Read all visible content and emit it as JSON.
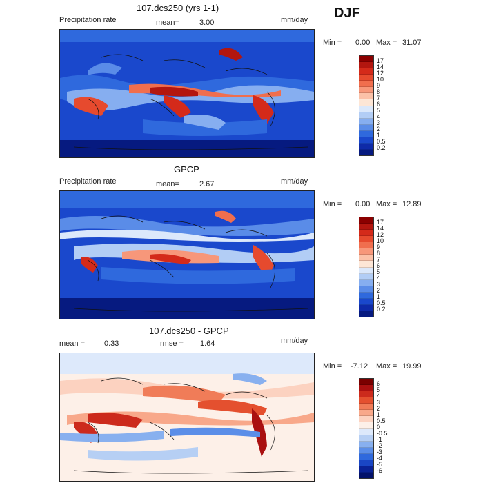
{
  "season": "DJF",
  "panels": [
    {
      "title": "107.dcs250 (yrs 1-1)",
      "left_label": "Precipitation rate",
      "mean_label": "mean=",
      "mean_value": "3.00",
      "units": "mm/day",
      "min_label": "Min =",
      "min_value": "0.00",
      "max_label": "Max =",
      "max_value": "31.07",
      "colorbar_labels": [
        "17",
        "14",
        "12",
        "10",
        "9",
        "8",
        "7",
        "6",
        "5",
        "4",
        "3",
        "2",
        "1",
        "0.5",
        "0.2"
      ]
    },
    {
      "title": "GPCP",
      "left_label": "Precipitation rate",
      "mean_label": "mean=",
      "mean_value": "2.67",
      "units": "mm/day",
      "min_label": "Min =",
      "min_value": "0.00",
      "max_label": "Max =",
      "max_value": "12.89",
      "colorbar_labels": [
        "17",
        "14",
        "12",
        "10",
        "9",
        "8",
        "7",
        "6",
        "5",
        "4",
        "3",
        "2",
        "1",
        "0.5",
        "0.2"
      ]
    },
    {
      "title": "107.dcs250 - GPCP",
      "mean_label": "mean =",
      "mean_value": "0.33",
      "rmse_label": "rmse =",
      "rmse_value": "1.64",
      "units": "mm/day",
      "min_label": "Min =",
      "min_value": "-7.12",
      "max_label": "Max =",
      "max_value": "19.99",
      "colorbar_labels": [
        "6",
        "5",
        "4",
        "3",
        "2",
        "1",
        "0.5",
        "0",
        "-0.5",
        "-1",
        "-2",
        "-3",
        "-4",
        "-5",
        "-6"
      ]
    }
  ],
  "colors": {
    "precip_scale": [
      "#8b0000",
      "#b3160f",
      "#d42a1a",
      "#e64a2e",
      "#f06e4e",
      "#f7977a",
      "#fbc1a8",
      "#fde6d6",
      "#dbe8fb",
      "#b2cdf5",
      "#86aef0",
      "#5a8ce8",
      "#2f69dd",
      "#1a48cc",
      "#0e2aa8",
      "#061a80"
    ],
    "diff_scale": [
      "#7a0000",
      "#aa1010",
      "#cc2a1c",
      "#e4502f",
      "#f07c58",
      "#f8a88a",
      "#fcd2c0",
      "#fdf0e8",
      "#dde9fb",
      "#b6cff4",
      "#88b0ef",
      "#5b8ee8",
      "#2f69dd",
      "#1a46c4",
      "#0a2296",
      "#03126a"
    ]
  }
}
